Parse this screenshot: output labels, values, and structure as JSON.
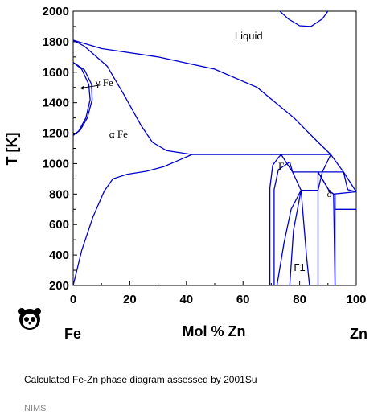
{
  "chart_data": {
    "type": "line",
    "title": "",
    "xlabel": "Mol % Zn",
    "ylabel": "T [K]",
    "xlim": [
      0,
      100
    ],
    "ylim": [
      200,
      2000
    ],
    "x_ticks": [
      "0",
      "20",
      "40",
      "60",
      "80",
      "100"
    ],
    "y_ticks": [
      "200",
      "400",
      "600",
      "800",
      "1000",
      "1200",
      "1400",
      "1600",
      "1800",
      "2000"
    ],
    "left_component": "Fe",
    "right_component": "Zn",
    "grid": false,
    "region_labels": [
      {
        "text": "Liquid",
        "x": 62,
        "y": 1815
      },
      {
        "text": "γ Fe",
        "x": 11,
        "y": 1510
      },
      {
        "text": "α Fe",
        "x": 16,
        "y": 1170
      },
      {
        "text": "Γ",
        "x": 73.5,
        "y": 960
      },
      {
        "text": "δ",
        "x": 90.5,
        "y": 780
      },
      {
        "text": "Γ1",
        "x": 80,
        "y": 295
      }
    ],
    "series": [
      {
        "values": [
          [
            0,
            1810
          ],
          [
            10,
            1755
          ],
          [
            30,
            1700
          ],
          [
            50,
            1620
          ],
          [
            65,
            1500
          ],
          [
            78,
            1300
          ],
          [
            86,
            1150
          ],
          [
            91,
            1060
          ]
        ]
      },
      {
        "values": [
          [
            0,
            1810
          ],
          [
            4,
            1770
          ],
          [
            12,
            1640
          ],
          [
            18,
            1450
          ],
          [
            24,
            1250
          ],
          [
            28,
            1140
          ],
          [
            33,
            1085
          ],
          [
            42,
            1060
          ]
        ]
      },
      {
        "values": [
          [
            0,
            1665
          ],
          [
            3,
            1620
          ],
          [
            5.5,
            1520
          ],
          [
            6,
            1420
          ],
          [
            4.5,
            1300
          ],
          [
            2,
            1215
          ],
          [
            0,
            1185
          ]
        ]
      },
      {
        "values": [
          [
            0,
            1665
          ],
          [
            4,
            1615
          ],
          [
            6.5,
            1520
          ],
          [
            6.7,
            1420
          ],
          [
            5,
            1300
          ],
          [
            2.5,
            1220
          ],
          [
            0,
            1185
          ]
        ]
      },
      {
        "values": [
          [
            0,
            200
          ],
          [
            3,
            430
          ],
          [
            7,
            650
          ],
          [
            11,
            820
          ],
          [
            14,
            900
          ],
          [
            19,
            930
          ],
          [
            26,
            950
          ],
          [
            32,
            980
          ],
          [
            37,
            1020
          ],
          [
            42,
            1060
          ]
        ]
      },
      {
        "values": [
          [
            42,
            1060
          ],
          [
            91,
            1060
          ]
        ]
      },
      {
        "values": [
          [
            69.5,
            200
          ],
          [
            69.5,
            840
          ],
          [
            70.5,
            990
          ],
          [
            72.5,
            1040
          ],
          [
            73.5,
            1060
          ]
        ]
      },
      {
        "values": [
          [
            73.5,
            1060
          ],
          [
            75.5,
            1000
          ],
          [
            77.5,
            945
          ]
        ]
      },
      {
        "values": [
          [
            71,
            200
          ],
          [
            71,
            830
          ],
          [
            72.5,
            960
          ],
          [
            76.5,
            1010
          ]
        ]
      },
      {
        "values": [
          [
            76.5,
            1010
          ],
          [
            77.5,
            945
          ]
        ]
      },
      {
        "values": [
          [
            77.5,
            945
          ],
          [
            95.5,
            945
          ]
        ]
      },
      {
        "values": [
          [
            77.5,
            945
          ],
          [
            80.5,
            825
          ]
        ]
      },
      {
        "values": [
          [
            72,
            200
          ],
          [
            74.5,
            480
          ],
          [
            77,
            700
          ],
          [
            80.5,
            825
          ]
        ]
      },
      {
        "values": [
          [
            76.5,
            200
          ],
          [
            77.8,
            560
          ],
          [
            80.5,
            825
          ]
        ]
      },
      {
        "values": [
          [
            80.5,
            825
          ],
          [
            86.5,
            825
          ]
        ]
      },
      {
        "values": [
          [
            80.5,
            825
          ],
          [
            81.5,
            600
          ],
          [
            82.5,
            380
          ],
          [
            83.5,
            200
          ]
        ]
      },
      {
        "values": [
          [
            86.5,
            945
          ],
          [
            86.5,
            200
          ]
        ]
      },
      {
        "values": [
          [
            86.5,
            945
          ],
          [
            90.5,
            820
          ],
          [
            92,
            800
          ],
          [
            92.5,
            200
          ]
        ]
      },
      {
        "values": [
          [
            91,
            1060
          ],
          [
            95.5,
            945
          ],
          [
            100,
            815
          ]
        ]
      },
      {
        "values": [
          [
            86.5,
            945
          ],
          [
            90.5,
            820
          ],
          [
            92,
            800
          ]
        ]
      },
      {
        "values": [
          [
            92,
            800
          ],
          [
            100,
            815
          ]
        ]
      },
      {
        "values": [
          [
            91,
            1060
          ],
          [
            88,
            945
          ],
          [
            86.5,
            825
          ]
        ]
      },
      {
        "values": [
          [
            95.5,
            945
          ],
          [
            97,
            830
          ],
          [
            100,
            815
          ]
        ]
      },
      {
        "values": [
          [
            92.5,
            790
          ],
          [
            92.5,
            700
          ],
          [
            100,
            700
          ]
        ]
      },
      {
        "values": [
          [
            92.5,
            200
          ],
          [
            92.5,
            790
          ]
        ]
      },
      {
        "values": [
          [
            73,
            2000
          ],
          [
            76,
            1950
          ],
          [
            80,
            1905
          ],
          [
            84,
            1900
          ],
          [
            88,
            1950
          ],
          [
            90,
            2000
          ]
        ]
      }
    ]
  },
  "caption": "Calculated Fe-Zn phase diagram assessed by 2001Su",
  "footer": "NIMS"
}
